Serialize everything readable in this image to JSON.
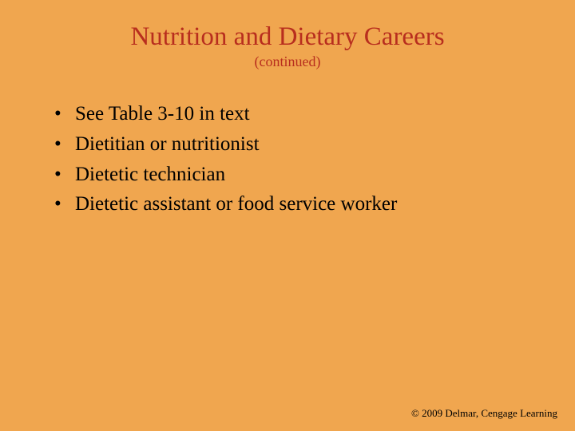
{
  "slide": {
    "background_color": "#f0a64f",
    "title": {
      "text": "Nutrition and Dietary Careers",
      "color": "#b82e1e",
      "fontsize": 33
    },
    "subtitle": {
      "text": "(continued)",
      "color": "#b82e1e",
      "fontsize": 18
    },
    "bullets": {
      "items": [
        "See Table 3-10 in text",
        "Dietitian or nutritionist",
        "Dietetic technician",
        "Dietetic assistant or food service worker"
      ],
      "marker": "•",
      "text_color": "#000000",
      "fontsize": 25,
      "line_height": 1.35
    },
    "footer": {
      "text": "© 2009 Delmar, Cengage Learning",
      "color": "#000000",
      "fontsize": 13
    }
  }
}
